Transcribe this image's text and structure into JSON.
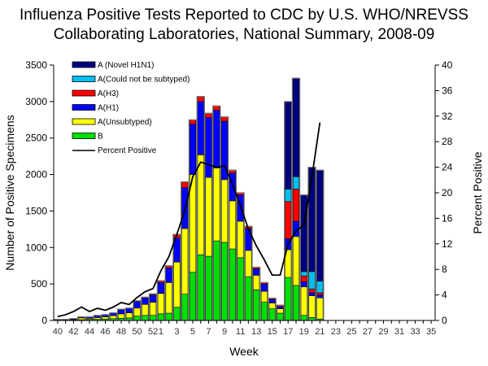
{
  "chart_data": {
    "type": "bar",
    "stacked": true,
    "title": "Influenza Positive Tests Reported to CDC by U.S. WHO/NREVSS",
    "subtitle": "Collaborating Laboratories, National Summary, 2008-09",
    "xlabel": "Week",
    "ylabel": "Number of Positive Specimens",
    "y2label": "Percent Positive",
    "ylim": [
      0,
      3500
    ],
    "y2lim": [
      0,
      40
    ],
    "yticks": [
      "0",
      "500",
      "1000",
      "1500",
      "2000",
      "2500",
      "3000",
      "3500"
    ],
    "y2ticks": [
      "0",
      "4",
      "8",
      "12",
      "16",
      "20",
      "24",
      "28",
      "32",
      "36",
      "40"
    ],
    "categories": [
      "40",
      "41",
      "42",
      "43",
      "44",
      "45",
      "46",
      "47",
      "48",
      "49",
      "50",
      "51",
      "52",
      "1",
      "2",
      "3",
      "4",
      "5",
      "6",
      "7",
      "8",
      "9",
      "10",
      "11",
      "12",
      "13",
      "14",
      "15",
      "16",
      "17",
      "18",
      "19",
      "20",
      "21",
      "22",
      "23",
      "24",
      "25",
      "26",
      "27",
      "28",
      "29",
      "30",
      "31",
      "32",
      "33",
      "34",
      "35"
    ],
    "xtick_labels": [
      "40",
      "42",
      "44",
      "46",
      "48",
      "50",
      "52",
      "1",
      "3",
      "5",
      "7",
      "9",
      "11",
      "13",
      "15",
      "17",
      "19",
      "21",
      "23",
      "25",
      "27",
      "29",
      "31",
      "33",
      "35"
    ],
    "grid": false,
    "legend": "top-left",
    "series": [
      {
        "name": "B",
        "color": "#00e000",
        "values": [
          5,
          5,
          8,
          10,
          15,
          15,
          20,
          25,
          30,
          35,
          60,
          70,
          70,
          90,
          100,
          180,
          360,
          660,
          900,
          880,
          1090,
          1070,
          980,
          860,
          600,
          420,
          250,
          160,
          100,
          590,
          480,
          70,
          40,
          20,
          0,
          0,
          0,
          0,
          0,
          0,
          0,
          0,
          0,
          0,
          0,
          0,
          0,
          0
        ]
      },
      {
        "name": "A(Unsubtyped)",
        "color": "#ffff00",
        "values": [
          5,
          5,
          8,
          25,
          15,
          25,
          30,
          40,
          60,
          70,
          110,
          150,
          180,
          280,
          420,
          620,
          900,
          1340,
          1370,
          1080,
          1000,
          860,
          660,
          500,
          360,
          200,
          150,
          80,
          60,
          380,
          670,
          390,
          300,
          290,
          0,
          0,
          0,
          0,
          0,
          0,
          0,
          0,
          0,
          0,
          0,
          0,
          0,
          0
        ]
      },
      {
        "name": "A(H1)",
        "color": "#0000ff",
        "values": [
          5,
          5,
          10,
          15,
          20,
          30,
          30,
          40,
          60,
          60,
          90,
          90,
          100,
          150,
          200,
          330,
          560,
          690,
          730,
          820,
          790,
          800,
          380,
          360,
          300,
          90,
          100,
          50,
          30,
          150,
          210,
          70,
          40,
          40,
          0,
          0,
          0,
          0,
          0,
          0,
          0,
          0,
          0,
          0,
          0,
          0,
          0,
          0
        ]
      },
      {
        "name": "A(H3)",
        "color": "#ff0000",
        "values": [
          0,
          0,
          0,
          0,
          0,
          0,
          0,
          0,
          5,
          5,
          10,
          10,
          15,
          25,
          30,
          50,
          80,
          60,
          70,
          60,
          60,
          60,
          40,
          30,
          30,
          20,
          20,
          15,
          20,
          510,
          440,
          80,
          50,
          30,
          0,
          0,
          0,
          0,
          0,
          0,
          0,
          0,
          0,
          0,
          0,
          0,
          0,
          0
        ]
      },
      {
        "name": "A(Could not be subtyped)",
        "color": "#00c0f0",
        "values": [
          0,
          0,
          0,
          0,
          0,
          0,
          0,
          0,
          0,
          0,
          0,
          0,
          0,
          0,
          0,
          0,
          0,
          0,
          0,
          0,
          0,
          0,
          0,
          0,
          0,
          0,
          0,
          0,
          0,
          170,
          170,
          60,
          240,
          160,
          0,
          0,
          0,
          0,
          0,
          0,
          0,
          0,
          0,
          0,
          0,
          0,
          0,
          0
        ]
      },
      {
        "name": "A (Novel H1N1)",
        "color": "#000080",
        "values": [
          0,
          0,
          0,
          0,
          0,
          0,
          0,
          0,
          0,
          0,
          0,
          0,
          0,
          0,
          0,
          0,
          0,
          0,
          0,
          0,
          0,
          0,
          0,
          0,
          0,
          0,
          0,
          0,
          0,
          1200,
          1350,
          1050,
          1430,
          1520,
          0,
          0,
          0,
          0,
          0,
          0,
          0,
          0,
          0,
          0,
          0,
          0,
          0,
          0
        ]
      }
    ],
    "line_series": {
      "name": "Percent Positive",
      "color": "#000000",
      "axis": "right",
      "values": [
        0.6,
        0.9,
        1.4,
        2.1,
        1.4,
        1.9,
        1.6,
        2.1,
        2.8,
        2.5,
        3.6,
        4.5,
        5.0,
        7.8,
        10.0,
        13.5,
        17.2,
        22.5,
        24.8,
        24.4,
        24.0,
        24.2,
        21.3,
        18.0,
        14.3,
        11.7,
        9.5,
        7.1,
        7.1,
        12.0,
        14.0,
        15.0,
        22.5,
        31.0,
        null,
        null,
        null,
        null,
        null,
        null,
        null,
        null,
        null,
        null,
        null,
        null,
        null,
        null
      ]
    }
  }
}
